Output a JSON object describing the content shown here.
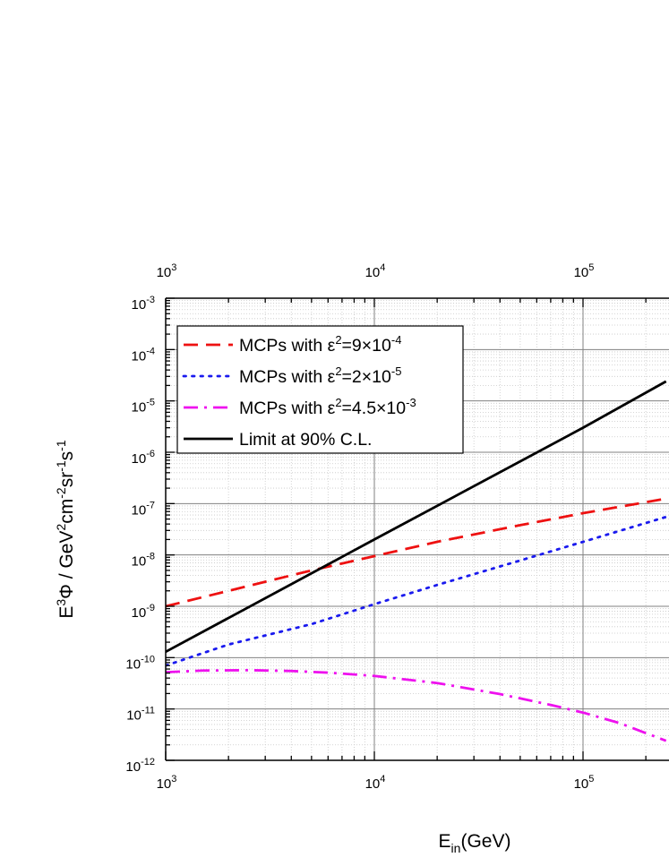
{
  "chart_data": {
    "type": "line",
    "x_scale": "log",
    "y_scale": "log",
    "xlim": [
      1000,
      250000
    ],
    "ylim": [
      1e-12,
      0.001
    ],
    "grid": true,
    "legend_position": "top-left",
    "xlabel": {
      "base": "E",
      "sub": "in",
      "rest": "(GeV)"
    },
    "ylabel": {
      "parts": [
        {
          "t": "E",
          "s": "n"
        },
        {
          "t": "3",
          "s": "sup"
        },
        {
          "t": "Φ / GeV",
          "s": "n"
        },
        {
          "t": "2",
          "s": "sup"
        },
        {
          "t": "cm",
          "s": "n"
        },
        {
          "t": "-2",
          "s": "sup"
        },
        {
          "t": "sr",
          "s": "n"
        },
        {
          "t": "-1",
          "s": "sup"
        },
        {
          "t": "s",
          "s": "n"
        },
        {
          "t": "-1",
          "s": "sup"
        }
      ]
    },
    "x_ticks": [
      {
        "value": 1000,
        "base": "10",
        "exp": "3"
      },
      {
        "value": 10000,
        "base": "10",
        "exp": "4"
      },
      {
        "value": 100000,
        "base": "10",
        "exp": "5"
      }
    ],
    "y_ticks": [
      {
        "value": 1e-12,
        "base": "10",
        "exp": "-12"
      },
      {
        "value": 1e-11,
        "base": "10",
        "exp": "-11"
      },
      {
        "value": 1e-10,
        "base": "10",
        "exp": "-10"
      },
      {
        "value": 1e-09,
        "base": "10",
        "exp": "-9"
      },
      {
        "value": 1e-08,
        "base": "10",
        "exp": "-8"
      },
      {
        "value": 1e-07,
        "base": "10",
        "exp": "-7"
      },
      {
        "value": 1e-06,
        "base": "10",
        "exp": "-6"
      },
      {
        "value": 1e-05,
        "base": "10",
        "exp": "-5"
      },
      {
        "value": 0.0001,
        "base": "10",
        "exp": "-4"
      },
      {
        "value": 0.001,
        "base": "10",
        "exp": "-3"
      }
    ],
    "series": [
      {
        "name": "MCPs with ε²=9×10⁻⁴",
        "legend": {
          "pre": "MCPs with ",
          "sym": "ε",
          "sup": "2",
          "mid": "=9×10",
          "sup2": "-4"
        },
        "color": "#ee1111",
        "style": "dashed",
        "x": [
          1000,
          2000,
          5000,
          10000,
          20000,
          50000,
          100000,
          250000
        ],
        "y": [
          1e-09,
          2e-09,
          5e-09,
          9.5e-09,
          1.8e-08,
          3.8e-08,
          6.5e-08,
          1.25e-07
        ]
      },
      {
        "name": "MCPs with ε²=2×10⁻⁵",
        "legend": {
          "pre": "MCPs with ",
          "sym": "ε",
          "sup": "2",
          "mid": "=2×10",
          "sup2": "-5"
        },
        "color": "#1a1aee",
        "style": "dotted",
        "x": [
          1000,
          2000,
          5000,
          10000,
          20000,
          50000,
          100000,
          250000
        ],
        "y": [
          7e-11,
          1.8e-10,
          4.5e-10,
          1.1e-09,
          2.6e-09,
          7.8e-09,
          1.8e-08,
          5.5e-08
        ]
      },
      {
        "name": "MCPs with ε²=4.5×10⁻³",
        "legend": {
          "pre": "MCPs with ",
          "sym": "ε",
          "sup": "2",
          "mid": "=4.5×10",
          "sup2": "-3"
        },
        "color": "#ee11ee",
        "style": "dashdot",
        "x": [
          1000,
          1500,
          2500,
          4000,
          6000,
          10000,
          20000,
          40000,
          70000,
          100000,
          150000,
          250000
        ],
        "y": [
          5.2e-11,
          5.6e-11,
          5.7e-11,
          5.5e-11,
          5.1e-11,
          4.4e-11,
          3.2e-11,
          1.95e-11,
          1.2e-11,
          8.5e-12,
          5.3e-12,
          2.4e-12
        ]
      },
      {
        "name": "Limit at 90% C.L.",
        "legend": {
          "pre": "Limit at 90% C.L."
        },
        "color": "#000000",
        "style": "solid",
        "x": [
          1000,
          10000,
          100000,
          250000
        ],
        "y": [
          1.3e-10,
          2e-08,
          3e-06,
          2.4e-05
        ]
      }
    ]
  }
}
